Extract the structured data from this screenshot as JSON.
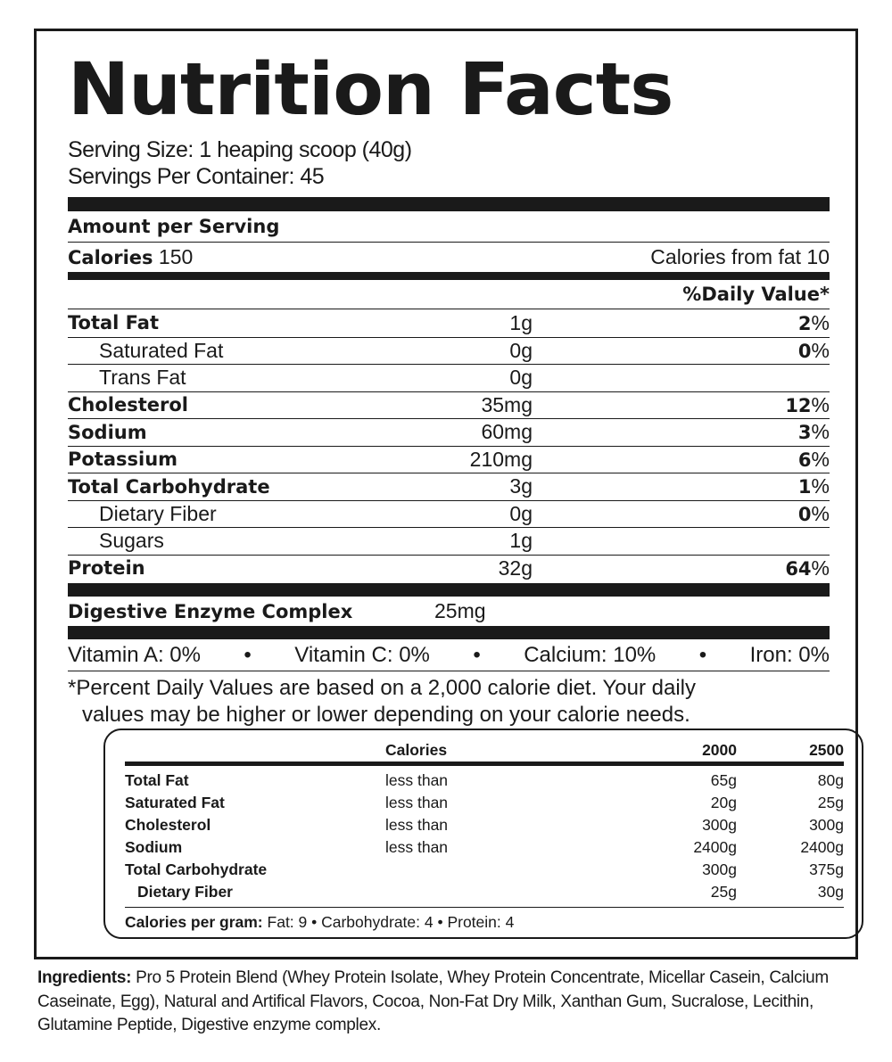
{
  "title": "Nutrition Facts",
  "serving_size": "Serving Size: 1 heaping scoop (40g)",
  "servings_per_container": "Servings Per Container: 45",
  "amount_per_serving": "Amount per Serving",
  "calories_label": "Calories",
  "calories_value": "150",
  "calories_from_fat": "Calories from fat 10",
  "daily_value_header": "%Daily Value*",
  "nutrients": [
    {
      "name": "Total Fat",
      "amount": "1g",
      "dv": "2",
      "bold": true
    },
    {
      "name": "Saturated Fat",
      "amount": "0g",
      "dv": "0",
      "bold": false
    },
    {
      "name": "Trans Fat",
      "amount": "0g",
      "dv": "",
      "bold": false
    },
    {
      "name": "Cholesterol",
      "amount": "35mg",
      "dv": "12",
      "bold": true
    },
    {
      "name": "Sodium",
      "amount": "60mg",
      "dv": "3",
      "bold": true
    },
    {
      "name": "Potassium",
      "amount": "210mg",
      "dv": "6",
      "bold": true
    },
    {
      "name": "Total Carbohydrate",
      "amount": "3g",
      "dv": "1",
      "bold": true
    },
    {
      "name": "Dietary Fiber",
      "amount": "0g",
      "dv": "0",
      "bold": false
    },
    {
      "name": "Sugars",
      "amount": "1g",
      "dv": "",
      "bold": false
    },
    {
      "name": "Protein",
      "amount": "32g",
      "dv": "64",
      "bold": true
    }
  ],
  "percent_sign": "%",
  "enzyme": {
    "name": "Digestive Enzyme Complex",
    "amount": "25mg"
  },
  "vitamins": [
    "Vitamin A: 0%",
    "Vitamin C: 0%",
    "Calcium: 10%",
    "Iron: 0%"
  ],
  "bullet": "•",
  "footnote": [
    "*Percent Daily Values are based on a 2,000 calorie diet. Your daily",
    "values may be higher or lower depending on your calorie needs."
  ],
  "reference_table": {
    "headers": [
      "",
      "Calories",
      "2000",
      "2500"
    ],
    "rows": [
      [
        "Total Fat",
        "less than",
        "65g",
        "80g"
      ],
      [
        "Saturated Fat",
        "less than",
        "20g",
        "25g"
      ],
      [
        "Cholesterol",
        "less than",
        "300g",
        "300g"
      ],
      [
        "Sodium",
        "less than",
        "2400g",
        "2400g"
      ],
      [
        "Total Carbohydrate",
        "",
        "300g",
        "375g"
      ],
      [
        "Dietary Fiber",
        "",
        "25g",
        "30g"
      ]
    ],
    "calories_per_gram_label": "Calories per gram:",
    "calories_per_gram": "Fat: 9 • Carbohydrate: 4 • Protein: 4"
  },
  "ingredients_label": "Ingredients:",
  "ingredients": "Pro 5 Protein Blend (Whey Protein Isolate, Whey Protein Concentrate, Micellar Casein, Calcium Caseinate, Egg), Natural and Artifical Flavors, Cocoa, Non-Fat Dry Milk, Xanthan Gum, Sucralose, Lecithin, Glutamine Peptide, Digestive enzyme complex."
}
